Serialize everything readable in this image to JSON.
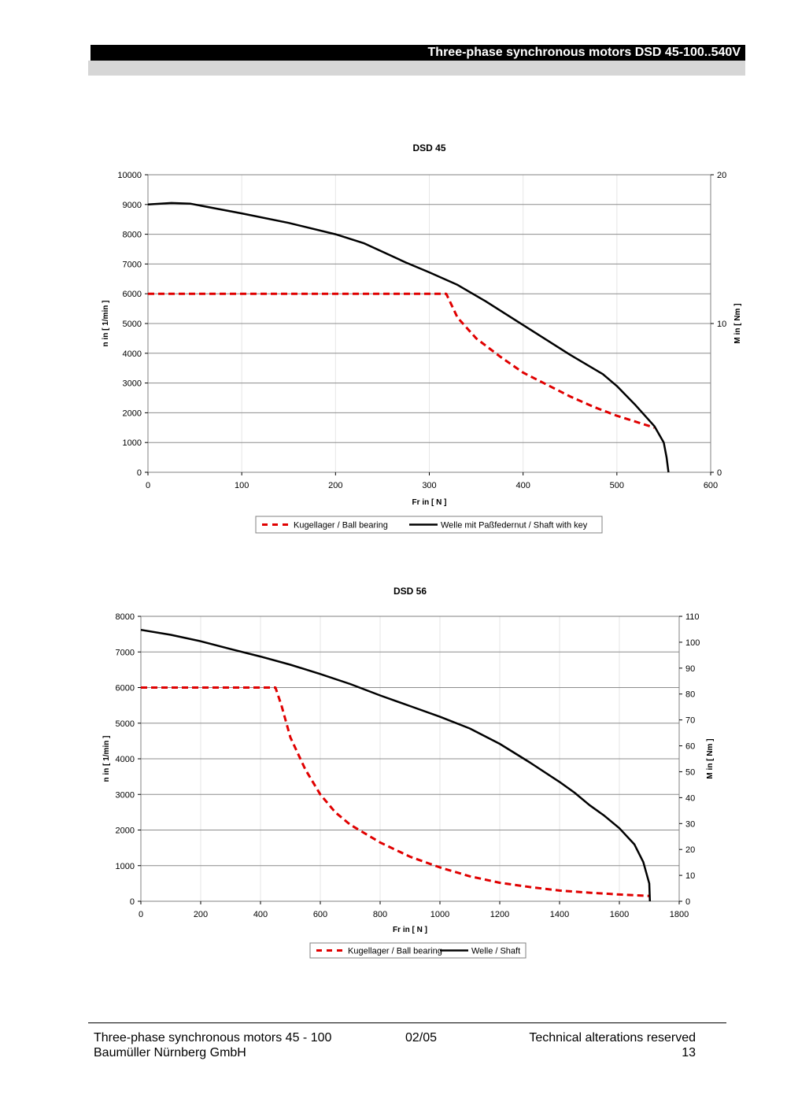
{
  "header": {
    "title": "Three-phase synchronous motors DSD 45-100..540V"
  },
  "chart_data": [
    {
      "type": "line",
      "title": "DSD 45",
      "xlabel": "Fr in [ N ]",
      "ylabel": "n in [ 1/min ]",
      "y2label": "M in [ Nm ]",
      "xlim": [
        0,
        600
      ],
      "ylim": [
        0,
        10000
      ],
      "y2lim": [
        0,
        20
      ],
      "xticks": [
        0,
        100,
        200,
        300,
        400,
        500,
        600
      ],
      "yticks": [
        0,
        1000,
        2000,
        3000,
        4000,
        5000,
        6000,
        7000,
        8000,
        9000,
        10000
      ],
      "y2ticks": [
        0,
        10,
        20
      ],
      "grid": true,
      "legend_position": "bottom",
      "series": [
        {
          "name": "Kugellager / Ball bearing",
          "style": "dashed",
          "color": "#e00000",
          "points": [
            [
              0,
              6000
            ],
            [
              100,
              6000
            ],
            [
              200,
              6000
            ],
            [
              300,
              6000
            ],
            [
              318,
              6000
            ],
            [
              330,
              5200
            ],
            [
              350,
              4500
            ],
            [
              375,
              3900
            ],
            [
              400,
              3350
            ],
            [
              425,
              2950
            ],
            [
              450,
              2550
            ],
            [
              475,
              2200
            ],
            [
              500,
              1900
            ],
            [
              525,
              1650
            ],
            [
              540,
              1500
            ]
          ]
        },
        {
          "name": "Welle mit Paßfedernut / Shaft with key",
          "style": "solid",
          "color": "#000000",
          "points": [
            [
              0,
              9000
            ],
            [
              25,
              9050
            ],
            [
              45,
              9030
            ],
            [
              75,
              8850
            ],
            [
              100,
              8700
            ],
            [
              150,
              8380
            ],
            [
              200,
              8000
            ],
            [
              230,
              7700
            ],
            [
              275,
              7050
            ],
            [
              300,
              6720
            ],
            [
              330,
              6300
            ],
            [
              360,
              5750
            ],
            [
              400,
              4950
            ],
            [
              450,
              3950
            ],
            [
              485,
              3300
            ],
            [
              500,
              2900
            ],
            [
              520,
              2250
            ],
            [
              540,
              1550
            ],
            [
              550,
              1000
            ],
            [
              553,
              500
            ],
            [
              555,
              0
            ]
          ]
        }
      ]
    },
    {
      "type": "line",
      "title": "DSD 56",
      "xlabel": "Fr in [ N ]",
      "ylabel": "n in [ 1/min ]",
      "y2label": "M in [ Nm ]",
      "xlim": [
        0,
        1800
      ],
      "ylim": [
        0,
        8000
      ],
      "y2lim": [
        0,
        110
      ],
      "xticks": [
        0,
        200,
        400,
        600,
        800,
        1000,
        1200,
        1400,
        1600,
        1800
      ],
      "yticks": [
        0,
        1000,
        2000,
        3000,
        4000,
        5000,
        6000,
        7000,
        8000
      ],
      "y2ticks": [
        0,
        10,
        20,
        30,
        40,
        50,
        60,
        70,
        80,
        90,
        100,
        110
      ],
      "grid": true,
      "legend_position": "bottom",
      "series": [
        {
          "name": "Kugellager / Ball bearing",
          "style": "dashed",
          "color": "#e00000",
          "points": [
            [
              0,
              6000
            ],
            [
              200,
              6000
            ],
            [
              450,
              6000
            ],
            [
              470,
              5500
            ],
            [
              500,
              4600
            ],
            [
              550,
              3700
            ],
            [
              600,
              3000
            ],
            [
              650,
              2500
            ],
            [
              700,
              2150
            ],
            [
              800,
              1650
            ],
            [
              900,
              1250
            ],
            [
              1000,
              950
            ],
            [
              1100,
              700
            ],
            [
              1200,
              520
            ],
            [
              1300,
              400
            ],
            [
              1400,
              300
            ],
            [
              1500,
              240
            ],
            [
              1600,
              190
            ],
            [
              1700,
              150
            ]
          ]
        },
        {
          "name": "Welle / Shaft",
          "style": "solid",
          "color": "#000000",
          "points": [
            [
              0,
              7620
            ],
            [
              100,
              7480
            ],
            [
              200,
              7300
            ],
            [
              300,
              7080
            ],
            [
              400,
              6870
            ],
            [
              500,
              6640
            ],
            [
              600,
              6380
            ],
            [
              700,
              6100
            ],
            [
              800,
              5780
            ],
            [
              900,
              5480
            ],
            [
              1000,
              5180
            ],
            [
              1100,
              4850
            ],
            [
              1200,
              4420
            ],
            [
              1300,
              3900
            ],
            [
              1400,
              3350
            ],
            [
              1450,
              3050
            ],
            [
              1500,
              2700
            ],
            [
              1550,
              2400
            ],
            [
              1600,
              2050
            ],
            [
              1650,
              1600
            ],
            [
              1680,
              1100
            ],
            [
              1700,
              500
            ],
            [
              1702,
              0
            ]
          ]
        }
      ]
    }
  ],
  "footer": {
    "left_line1": "Three-phase synchronous motors 45 - 100",
    "left_line2": "Baumüller Nürnberg GmbH",
    "date": "02/05",
    "right_line1": "Technical alterations reserved",
    "page_number": "13"
  }
}
